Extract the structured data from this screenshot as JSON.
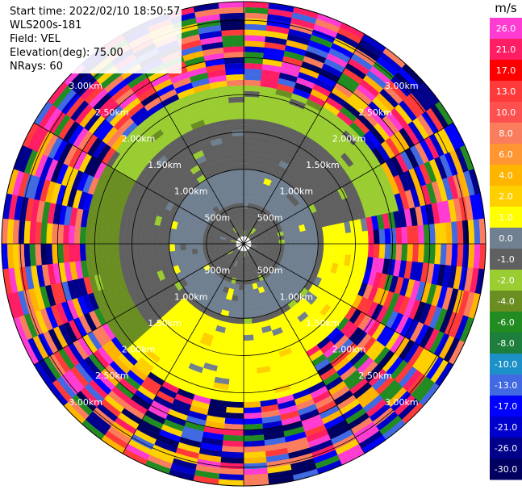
{
  "info": {
    "start_time": "Start time: 2022/02/10 18:50:57",
    "site": "WLS200s-181",
    "field": "Field: VEL",
    "elevation": "Elevation(deg): 75.00",
    "nrays": "NRays: 60"
  },
  "chart_data": {
    "type": "heatmap",
    "projection": "polar-ppi",
    "field": "VEL",
    "units": "m/s",
    "elevation_deg": 75.0,
    "nrays": 60,
    "rings_km": [
      0.5,
      1.0,
      1.5,
      2.0,
      2.5,
      3.0
    ],
    "ring_labels": [
      "500m",
      "1.00km",
      "1.50km",
      "2.00km",
      "2.50km",
      "3.00km"
    ],
    "max_range_km": 3.25,
    "gate_km": 0.075,
    "radial_lines": 12,
    "colorbar": {
      "label": "m/s",
      "min": -30.0,
      "max": 30.0,
      "tick_labels": [
        "26.0",
        "21.0",
        "17.0",
        "13.0",
        "10.0",
        "8.0",
        "6.0",
        "4.0",
        "2.0",
        "1.0",
        "0.0",
        "-1.0",
        "-2.0",
        "-4.0",
        "-6.0",
        "-8.0",
        "-10.0",
        "-13.0",
        "-17.0",
        "-21.0",
        "-26.0",
        "-30.0"
      ],
      "bins": [
        {
          "from": 26,
          "to": 30,
          "color": "#ff3cd2"
        },
        {
          "from": 21,
          "to": 26,
          "color": "#ff1e64"
        },
        {
          "from": 17,
          "to": 21,
          "color": "#ff0000"
        },
        {
          "from": 13,
          "to": 17,
          "color": "#ff3a3a"
        },
        {
          "from": 10,
          "to": 13,
          "color": "#ff5050"
        },
        {
          "from": 8,
          "to": 10,
          "color": "#fa7e5e"
        },
        {
          "from": 6,
          "to": 8,
          "color": "#ff9632"
        },
        {
          "from": 4,
          "to": 6,
          "color": "#ffb400"
        },
        {
          "from": 2,
          "to": 4,
          "color": "#ffd000"
        },
        {
          "from": 1,
          "to": 2,
          "color": "#ffff00"
        },
        {
          "from": 0,
          "to": 1,
          "color": "#708090"
        },
        {
          "from": -1,
          "to": 0,
          "color": "#606060"
        },
        {
          "from": -2,
          "to": -1,
          "color": "#9acd32"
        },
        {
          "from": -4,
          "to": -2,
          "color": "#6b8e23"
        },
        {
          "from": -6,
          "to": -4,
          "color": "#228b22"
        },
        {
          "from": -8,
          "to": -6,
          "color": "#1e7f3c"
        },
        {
          "from": -10,
          "to": -8,
          "color": "#1e90c8"
        },
        {
          "from": -13,
          "to": -10,
          "color": "#4169e1"
        },
        {
          "from": -17,
          "to": -13,
          "color": "#0000ff"
        },
        {
          "from": -21,
          "to": -17,
          "color": "#0000cd"
        },
        {
          "from": -26,
          "to": -21,
          "color": "#00008b"
        },
        {
          "from": -30,
          "to": -26,
          "color": "#000060"
        }
      ]
    },
    "zones": [
      {
        "r_km": [
          0.1,
          1.1
        ],
        "az_deg": [
          0,
          360
        ],
        "vel": -0.5
      },
      {
        "r_km": [
          0.55,
          1.0
        ],
        "az_deg": [
          0,
          360
        ],
        "vel": 0.5
      },
      {
        "r_km": [
          1.1,
          1.65
        ],
        "az_deg": [
          0,
          360
        ],
        "vel": -0.5
      },
      {
        "r_km": [
          1.1,
          1.65
        ],
        "az_deg": [
          80,
          150
        ],
        "vel": 1.5
      },
      {
        "r_km": [
          1.1,
          2.1
        ],
        "az_deg": [
          150,
          230
        ],
        "vel": 1.5
      },
      {
        "r_km": [
          1.65,
          2.1
        ],
        "az_deg": [
          230,
          300
        ],
        "vel": -3.0
      },
      {
        "r_km": [
          1.65,
          2.1
        ],
        "az_deg": [
          300,
          360
        ],
        "vel": -1.5
      },
      {
        "r_km": [
          1.65,
          2.1
        ],
        "az_deg": [
          0,
          80
        ],
        "vel": -1.5
      },
      {
        "r_km": [
          2.1,
          3.25
        ],
        "az_deg": [
          0,
          360
        ],
        "vel": null
      }
    ]
  }
}
